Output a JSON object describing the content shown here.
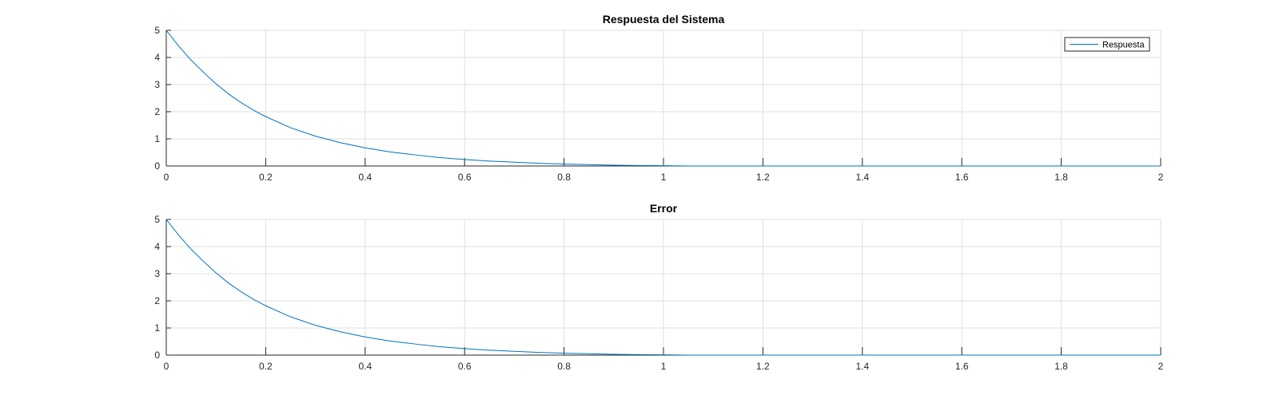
{
  "figure": {
    "background": "#ffffff",
    "axes_color": "#262626",
    "grid_color": "#dfdfdf"
  },
  "chart_data": [
    {
      "type": "line",
      "title": "Respuesta del Sistema",
      "xlabel": "",
      "ylabel": "",
      "xlim": [
        0,
        2
      ],
      "ylim": [
        0,
        5
      ],
      "xticks": [
        "0",
        "0.2",
        "0.4",
        "0.6",
        "0.8",
        "1",
        "1.2",
        "1.4",
        "1.6",
        "1.8",
        "2"
      ],
      "yticks": [
        "0",
        "1",
        "2",
        "3",
        "4",
        "5"
      ],
      "grid": true,
      "legend": {
        "position": "top-right",
        "entries": [
          "Respuesta"
        ]
      },
      "series": [
        {
          "name": "Respuesta",
          "color": "#0072bd",
          "x": [
            0,
            0.025,
            0.05,
            0.075,
            0.1,
            0.125,
            0.15,
            0.175,
            0.2,
            0.25,
            0.3,
            0.35,
            0.4,
            0.45,
            0.5,
            0.55,
            0.6,
            0.65,
            0.7,
            0.75,
            0.8,
            0.85,
            0.9,
            0.95,
            1.0,
            1.05,
            1.1,
            1.2,
            1.3,
            1.4,
            1.5,
            1.6,
            1.7,
            1.8,
            1.9,
            2.0
          ],
          "y": [
            5.0,
            4.42,
            3.9,
            3.45,
            3.03,
            2.66,
            2.34,
            2.06,
            1.82,
            1.41,
            1.1,
            0.86,
            0.67,
            0.52,
            0.41,
            0.31,
            0.24,
            0.18,
            0.14,
            0.1,
            0.07,
            0.05,
            0.03,
            0.02,
            0.01,
            0.0,
            0.0,
            0.0,
            0.0,
            0.0,
            0.0,
            0.0,
            0.0,
            0.0,
            0.0,
            0.0
          ]
        }
      ]
    },
    {
      "type": "line",
      "title": "Error",
      "xlabel": "",
      "ylabel": "",
      "xlim": [
        0,
        2
      ],
      "ylim": [
        0,
        5
      ],
      "xticks": [
        "0",
        "0.2",
        "0.4",
        "0.6",
        "0.8",
        "1",
        "1.2",
        "1.4",
        "1.6",
        "1.8",
        "2"
      ],
      "yticks": [
        "0",
        "1",
        "2",
        "3",
        "4",
        "5"
      ],
      "grid": true,
      "series": [
        {
          "color": "#0072bd",
          "x": [
            0,
            0.025,
            0.05,
            0.075,
            0.1,
            0.125,
            0.15,
            0.175,
            0.2,
            0.25,
            0.3,
            0.35,
            0.4,
            0.45,
            0.5,
            0.55,
            0.6,
            0.65,
            0.7,
            0.75,
            0.8,
            0.85,
            0.9,
            0.95,
            1.0,
            1.05,
            1.1,
            1.2,
            1.3,
            1.4,
            1.5,
            1.6,
            1.7,
            1.8,
            1.9,
            2.0
          ],
          "y": [
            5.0,
            4.42,
            3.9,
            3.45,
            3.03,
            2.66,
            2.34,
            2.06,
            1.82,
            1.41,
            1.1,
            0.86,
            0.67,
            0.52,
            0.41,
            0.31,
            0.24,
            0.18,
            0.14,
            0.1,
            0.07,
            0.05,
            0.03,
            0.02,
            0.01,
            0.0,
            0.0,
            0.0,
            0.0,
            0.0,
            0.0,
            0.0,
            0.0,
            0.0,
            0.0,
            0.0
          ]
        }
      ]
    }
  ]
}
